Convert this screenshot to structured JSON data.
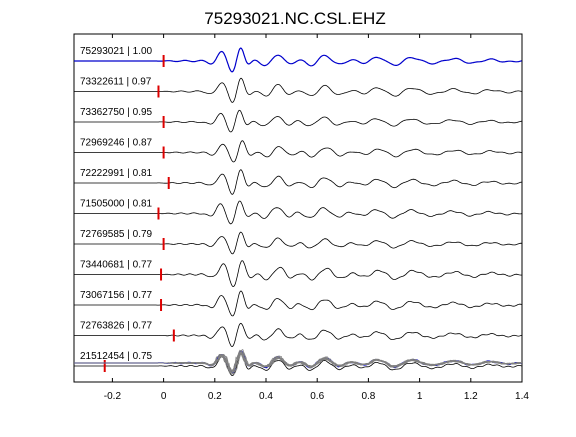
{
  "chart_data": {
    "type": "line",
    "title": "75293021.NC.CSL.EHZ",
    "xlabel": "",
    "ylabel": "",
    "xlim": [
      -0.35,
      1.4
    ],
    "xticks": [
      -0.2,
      0,
      0.2,
      0.4,
      0.6,
      0.8,
      1.0,
      1.2,
      1.4
    ],
    "xtick_labels": [
      "-0.2",
      "0",
      "0.2",
      "0.4",
      "0.6",
      "0.8",
      "1",
      "1.2",
      "1.4"
    ],
    "grid": false,
    "colors": {
      "reference": "#0000cc",
      "trace": "#000000",
      "pick": "#dd0000",
      "stack": "#808080"
    },
    "series": [
      {
        "name": "75293021 | 1.00",
        "pick": 0.0,
        "shift": 0.0
      },
      {
        "name": "73322611 | 0.97",
        "pick": -0.02,
        "shift": 0.0
      },
      {
        "name": "73362750 | 0.95",
        "pick": 0.0,
        "shift": -0.005
      },
      {
        "name": "72969246 | 0.87",
        "pick": 0.0,
        "shift": 0.005
      },
      {
        "name": "72222991 | 0.81",
        "pick": 0.02,
        "shift": 0.0
      },
      {
        "name": "71505000 | 0.81",
        "pick": -0.02,
        "shift": -0.005
      },
      {
        "name": "72769585 | 0.79",
        "pick": 0.0,
        "shift": 0.0
      },
      {
        "name": "73440681 | 0.77",
        "pick": -0.01,
        "shift": 0.005
      },
      {
        "name": "73067156 | 0.77",
        "pick": -0.01,
        "shift": 0.0
      },
      {
        "name": "72763826 | 0.77",
        "pick": 0.04,
        "shift": 0.0
      },
      {
        "name": "21512454 | 0.75",
        "pick": -0.23,
        "shift": 0.0
      }
    ],
    "bottom_panel": "overlay of all traces with reference in blue"
  }
}
